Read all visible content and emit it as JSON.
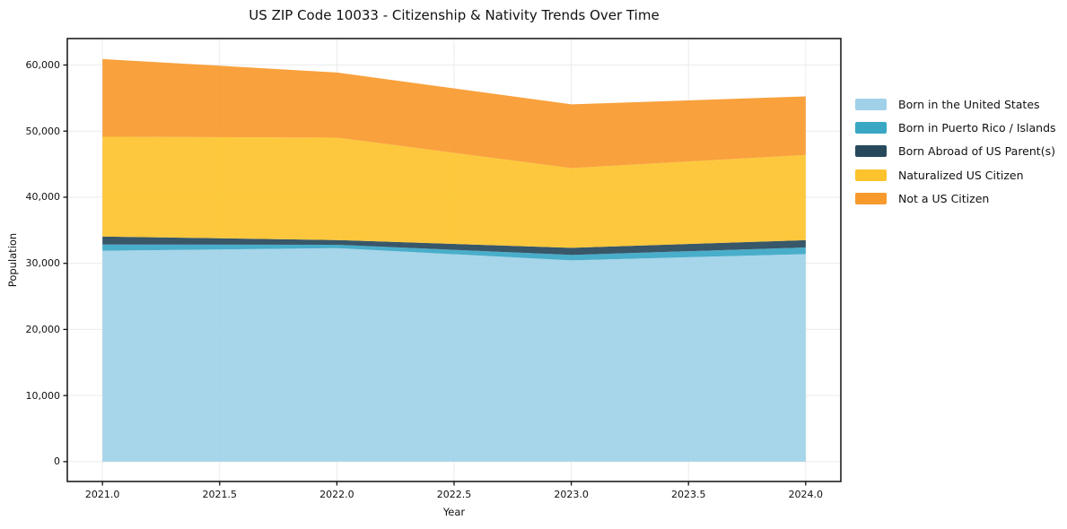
{
  "title": "US ZIP Code 10033 - Citizenship & Nativity Trends Over Time",
  "chart_data": {
    "type": "area",
    "stacked": true,
    "title": "US ZIP Code 10033 - Citizenship & Nativity Trends Over Time",
    "xlabel": "Year",
    "ylabel": "Population",
    "x": [
      2021,
      2022,
      2023,
      2024
    ],
    "xlim": [
      2020.85,
      2024.15
    ],
    "ylim": [
      -3000,
      64000
    ],
    "xticks": [
      2021.0,
      2021.5,
      2022.0,
      2022.5,
      2023.0,
      2023.5,
      2024.0
    ],
    "xtick_labels": [
      "2021.0",
      "2021.5",
      "2022.0",
      "2022.5",
      "2023.0",
      "2023.5",
      "2024.0"
    ],
    "yticks": [
      0,
      10000,
      20000,
      30000,
      40000,
      50000,
      60000
    ],
    "ytick_labels": [
      "0",
      "10,000",
      "20,000",
      "30,000",
      "40,000",
      "50,000",
      "60,000"
    ],
    "grid": true,
    "legend_position": "right-outside",
    "colors": {
      "grid": "#ebebeb",
      "spine": "#111111",
      "background": "#ffffff"
    },
    "series": [
      {
        "name": "Born in the United States",
        "color": "#a0d1e8",
        "values": [
          31900,
          32300,
          30450,
          31400
        ]
      },
      {
        "name": "Born in Puerto Rico / Islands",
        "color": "#3aa7c5",
        "values": [
          950,
          500,
          820,
          1000
        ]
      },
      {
        "name": "Born Abroad of US Parent(s)",
        "color": "#27495c",
        "values": [
          1200,
          720,
          1080,
          1100
        ]
      },
      {
        "name": "Naturalized US Citizen",
        "color": "#fdc32d",
        "values": [
          15100,
          15500,
          12050,
          12900
        ]
      },
      {
        "name": "Not a US Citizen",
        "color": "#f8992c",
        "values": [
          11750,
          9850,
          9650,
          8850
        ]
      }
    ],
    "totals": [
      60900,
      58870,
      54050,
      55250
    ]
  }
}
